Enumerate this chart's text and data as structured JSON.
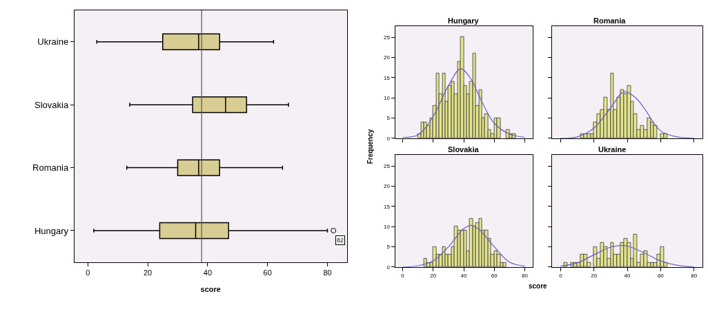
{
  "chart_data": [
    {
      "type": "box",
      "orientation": "horizontal",
      "categories": [
        "Ukraine",
        "Slovakia",
        "Romania",
        "Hungary"
      ],
      "color": "#d8cd92",
      "xlabel": "score",
      "xlim": [
        -4.5,
        86.5
      ],
      "xticks": [
        0,
        20,
        40,
        60,
        80
      ],
      "boxes": [
        {
          "low": 3,
          "q1": 25,
          "median": 37,
          "q3": 44,
          "high": 62
        },
        {
          "low": 14,
          "q1": 35,
          "median": 46,
          "q3": 53,
          "high": 67
        },
        {
          "low": 13,
          "q1": 30,
          "median": 37,
          "q3": 44,
          "high": 65
        },
        {
          "low": 2,
          "q1": 24,
          "median": 36,
          "q3": 47,
          "high": 80,
          "outliers": [
            82
          ]
        }
      ],
      "ref_lines": [
        {
          "axis": "x",
          "value": 38,
          "color": "#555555"
        }
      ],
      "annotations": [
        "82"
      ]
    },
    {
      "type": "histogram",
      "title": "Hungary",
      "color": "#e4e48c",
      "xlim": [
        -5,
        85
      ],
      "ylim": [
        0,
        27.8
      ],
      "yticks": [
        0,
        5,
        10,
        15,
        20,
        25
      ],
      "xticks": [
        0,
        20,
        40,
        60,
        80
      ],
      "tick_labels": "y",
      "bins": [
        10,
        12,
        14,
        16,
        18,
        20,
        22,
        24,
        26,
        28,
        30,
        32,
        34,
        36,
        38,
        40,
        42,
        44,
        46,
        48,
        50,
        52,
        54,
        56,
        58,
        60,
        62,
        64,
        66,
        68,
        70,
        72,
        74
      ],
      "values": [
        1,
        4,
        4,
        3,
        5,
        8,
        16,
        11,
        16,
        9,
        13,
        14,
        11,
        19,
        25,
        13,
        11,
        14,
        21,
        8,
        12,
        5,
        6,
        2,
        1,
        5,
        5,
        0,
        0,
        2,
        1,
        1
      ],
      "series": [
        {
          "type": "line",
          "color": "#6a5acd",
          "x": [
            0,
            10,
            20,
            30,
            38,
            45,
            50,
            60,
            70,
            80
          ],
          "values": [
            0.2,
            0.8,
            5.4,
            13,
            17.2,
            14.5,
            10.5,
            3.7,
            1,
            0.2
          ]
        }
      ]
    },
    {
      "type": "histogram",
      "title": "Romania",
      "color": "#e4e48c",
      "xlim": [
        -5,
        85
      ],
      "ylim": [
        0,
        27.8
      ],
      "yticks": [
        0,
        5,
        10,
        15,
        20,
        25
      ],
      "xticks": [
        0,
        20,
        40,
        60,
        80
      ],
      "tick_labels": false,
      "bins": [
        12,
        14,
        16,
        18,
        20,
        22,
        24,
        26,
        28,
        30,
        32,
        34,
        36,
        38,
        40,
        42,
        44,
        46,
        48,
        50,
        52,
        54,
        56,
        58,
        60,
        62,
        64
      ],
      "values": [
        1,
        1,
        1,
        1,
        4,
        6,
        7,
        10,
        7,
        16,
        7,
        10,
        12,
        11,
        13,
        9,
        6,
        2,
        3,
        2,
        5,
        4,
        3,
        0,
        1,
        1
      ],
      "series": [
        {
          "type": "line",
          "color": "#6a5acd",
          "x": [
            0,
            10,
            20,
            30,
            38,
            45,
            50,
            60,
            70,
            80
          ],
          "values": [
            0,
            0.3,
            2.5,
            7.5,
            11.5,
            10,
            7.5,
            1.8,
            0.3,
            0
          ]
        }
      ]
    },
    {
      "type": "histogram",
      "title": "Slovakia",
      "color": "#e4e48c",
      "xlim": [
        -5,
        85
      ],
      "ylim": [
        0,
        27.8
      ],
      "yticks": [
        0,
        5,
        10,
        15,
        20,
        25
      ],
      "xticks": [
        0,
        20,
        40,
        60,
        80
      ],
      "xlabel": "score",
      "ylabel": "Frequency",
      "bins": [
        14,
        16,
        18,
        20,
        22,
        24,
        26,
        28,
        30,
        32,
        34,
        36,
        38,
        40,
        42,
        44,
        46,
        48,
        50,
        52,
        54,
        56,
        58,
        60,
        62,
        64,
        66,
        68
      ],
      "values": [
        2,
        1,
        1,
        5,
        3,
        3,
        5,
        3,
        3,
        5,
        10,
        9,
        9,
        9,
        4,
        12,
        10,
        11,
        12,
        9,
        9,
        7,
        3,
        4,
        3,
        1,
        1
      ],
      "series": [
        {
          "type": "line",
          "color": "#6a5acd",
          "x": [
            0,
            10,
            20,
            30,
            40,
            45,
            50,
            60,
            70,
            80
          ],
          "values": [
            0,
            0.3,
            1.5,
            5,
            9.5,
            10.3,
            9.3,
            5,
            1.2,
            0.2
          ]
        }
      ]
    },
    {
      "type": "histogram",
      "title": "Ukraine",
      "color": "#e4e48c",
      "xlim": [
        -5,
        85
      ],
      "ylim": [
        0,
        27.8
      ],
      "yticks": [
        0,
        5,
        10,
        15,
        20,
        25
      ],
      "xticks": [
        0,
        20,
        40,
        60,
        80
      ],
      "tick_labels": "x",
      "bins": [
        2,
        4,
        6,
        8,
        10,
        12,
        14,
        16,
        18,
        20,
        22,
        24,
        26,
        28,
        30,
        32,
        34,
        36,
        38,
        40,
        42,
        44,
        46,
        48,
        50,
        52,
        54,
        56,
        58,
        60,
        62,
        64
      ],
      "values": [
        1,
        0,
        1,
        1,
        1,
        3,
        3,
        1,
        0,
        5,
        2,
        6,
        5,
        2,
        6,
        3,
        3,
        6,
        7,
        6,
        2,
        8,
        1,
        3,
        4,
        1,
        1,
        1,
        3,
        5,
        1
      ],
      "series": [
        {
          "type": "line",
          "color": "#6a5acd",
          "x": [
            0,
            10,
            20,
            30,
            37,
            40,
            50,
            60,
            70,
            80
          ],
          "values": [
            0.2,
            1,
            3,
            4.9,
            5.3,
            5.2,
            3.5,
            1.5,
            0.4,
            0
          ]
        }
      ]
    }
  ]
}
